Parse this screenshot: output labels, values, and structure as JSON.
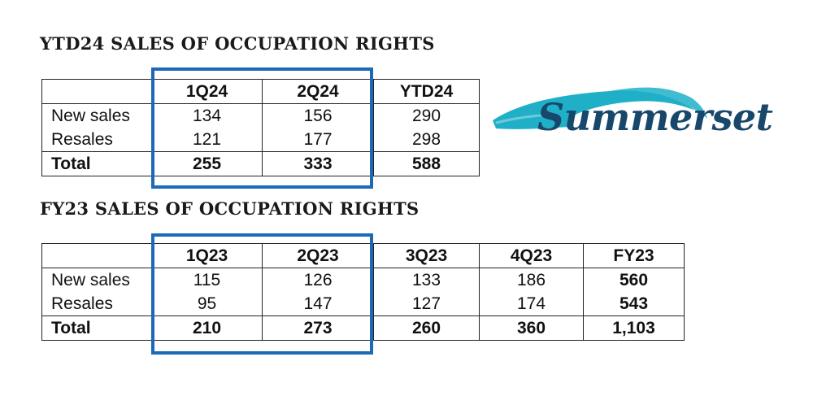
{
  "ytd24": {
    "heading": "YTD24 SALES OF OCCUPATION RIGHTS",
    "columns": [
      "",
      "1Q24",
      "2Q24",
      "YTD24"
    ],
    "rows": [
      [
        "New sales",
        "134",
        "156",
        "290"
      ],
      [
        "Resales",
        "121",
        "177",
        "298"
      ],
      [
        "Total",
        "255",
        "333",
        "588"
      ]
    ]
  },
  "fy23": {
    "heading": "FY23 SALES OF OCCUPATION RIGHTS",
    "columns": [
      "",
      "1Q23",
      "2Q23",
      "3Q23",
      "4Q23",
      "FY23"
    ],
    "rows": [
      [
        "New sales",
        "115",
        "126",
        "133",
        "186",
        "560"
      ],
      [
        "Resales",
        "95",
        "147",
        "127",
        "174",
        "543"
      ],
      [
        "Total",
        "210",
        "273",
        "260",
        "360",
        "1,103"
      ]
    ]
  },
  "logo": {
    "text": "Summerset",
    "colors": {
      "text": "#17476a",
      "swoosh": "#1fb0c8"
    }
  },
  "highlight_color": "#1b6ab7"
}
